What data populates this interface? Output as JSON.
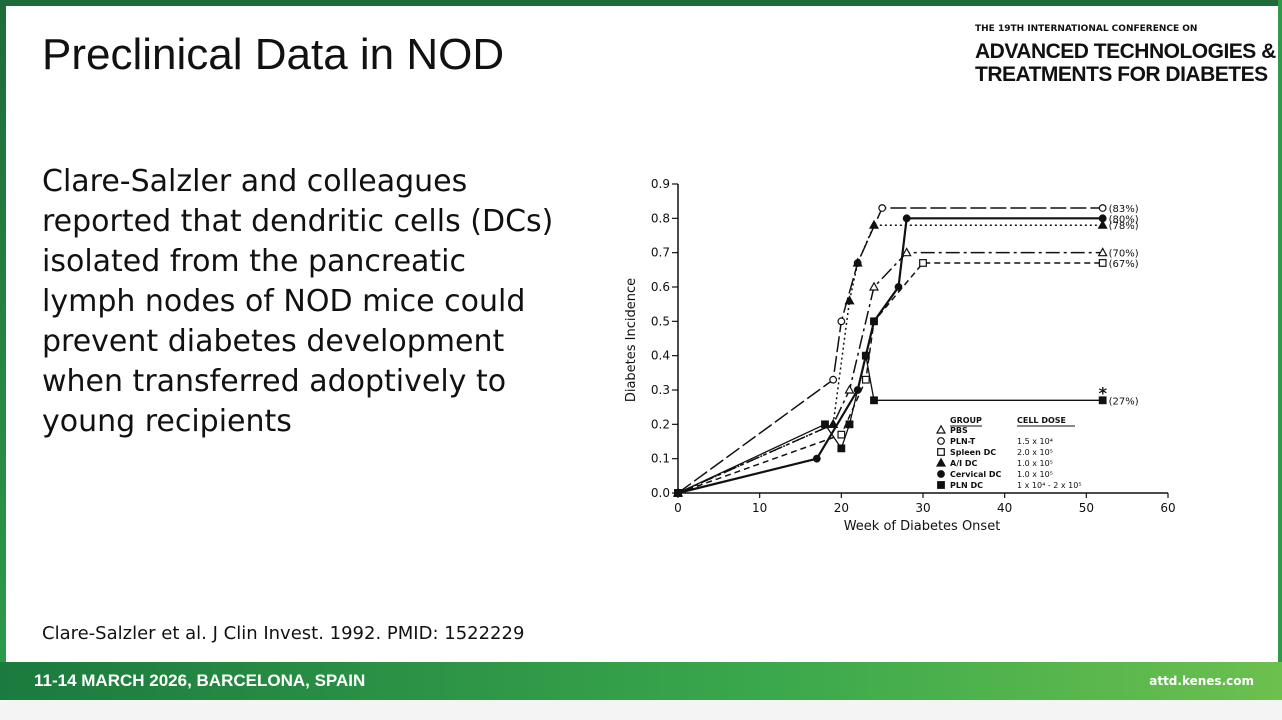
{
  "header": {
    "title": "Preclinical Data in NOD",
    "conference_line": "THE 19TH INTERNATIONAL CONFERENCE ON",
    "conference_name_1": "ADVANCED TECHNOLOGIES &",
    "conference_name_2": "TREATMENTS FOR DIABETES"
  },
  "body": {
    "lines": [
      "Clare-Salzler and colleagues",
      "reported that dendritic cells (DCs)",
      "isolated from the pancreatic",
      "lymph nodes of NOD mice could",
      "prevent diabetes development",
      "when transferred adoptively to",
      "young recipients"
    ],
    "citation": "Clare-Salzler et al. J Clin Invest. 1992. PMID: 1522229"
  },
  "footer": {
    "event": "11-14 MARCH 2026, BARCELONA, SPAIN",
    "url": "attd.kenes.com"
  },
  "chart_data": {
    "type": "line",
    "x_label": "Week of Diabetes Onset",
    "y_label": "Diabetes Incidence",
    "xlim": [
      0,
      60
    ],
    "xticks": [
      0,
      10,
      20,
      30,
      40,
      50,
      60
    ],
    "ylim": [
      0,
      0.9
    ],
    "yticks": [
      {
        "value": 0,
        "label": "0.0"
      },
      0.1,
      0.2,
      0.3,
      0.4,
      0.5,
      0.6,
      0.7,
      0.8,
      0.9
    ],
    "legend_title": "GROUP",
    "legend_dose_title": "CELL DOSE",
    "annotation": "*",
    "series": [
      {
        "name": "PBS",
        "dose": "",
        "color": "#111111",
        "marker": "triangle-open",
        "line_style": "dash-dot",
        "end_label": "(70%)",
        "x": [
          0,
          19,
          21,
          24,
          28,
          52
        ],
        "values": [
          0,
          0.2,
          0.3,
          0.6,
          0.7,
          0.7
        ]
      },
      {
        "name": "PLN-T",
        "dose": "1.5 x 10⁴",
        "color": "#111111",
        "marker": "circle-open",
        "line_style": "long-dash",
        "end_label": "(83%)",
        "x": [
          0,
          19,
          20,
          22,
          25,
          52
        ],
        "values": [
          0,
          0.33,
          0.5,
          0.67,
          0.83,
          0.83
        ]
      },
      {
        "name": "Spleen DC",
        "dose": "2.0 x 10⁵",
        "color": "#111111",
        "marker": "square-open",
        "line_style": "short-dash",
        "end_label": "(67%)",
        "x": [
          0,
          20,
          23,
          24,
          30,
          52
        ],
        "values": [
          0,
          0.17,
          0.33,
          0.5,
          0.67,
          0.67
        ]
      },
      {
        "name": "A/I DC",
        "dose": "1.0 x 10⁵",
        "color": "#111111",
        "marker": "triangle",
        "line_style": "dotted",
        "end_label": "(78%)",
        "x": [
          0,
          19,
          21,
          22,
          24,
          52
        ],
        "values": [
          0,
          0.2,
          0.56,
          0.67,
          0.78,
          0.78
        ]
      },
      {
        "name": "Cervical DC",
        "dose": "1.0 x 10⁵",
        "color": "#111111",
        "marker": "circle",
        "line_style": "solid",
        "end_label": "(80%)",
        "x": [
          0,
          17,
          22,
          23,
          24,
          27,
          28,
          52
        ],
        "values": [
          0,
          0.1,
          0.3,
          0.4,
          0.5,
          0.6,
          0.8,
          0.8
        ]
      },
      {
        "name": "PLN DC",
        "dose": "1 x 10⁴ - 2 x 10⁵",
        "color": "#111111",
        "marker": "square",
        "line_style": "thin",
        "end_label": "(27%)",
        "x": [
          0,
          18,
          20,
          21,
          23,
          24,
          52
        ],
        "values": [
          0,
          0.2,
          0.13,
          0.2,
          0.4,
          0.27,
          0.27
        ]
      }
    ]
  }
}
